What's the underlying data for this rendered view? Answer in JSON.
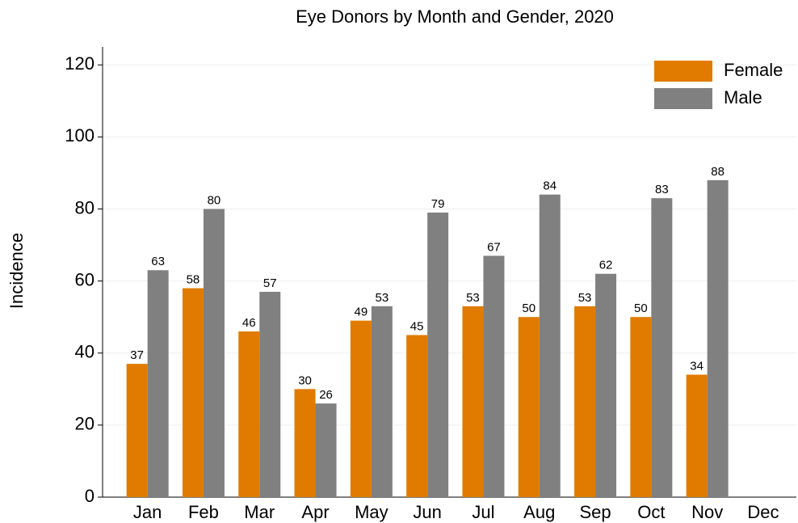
{
  "chart_data": {
    "type": "bar",
    "title": "Eye Donors by Month and Gender, 2020",
    "y_label": "Incidence",
    "categories": [
      "Jan",
      "Feb",
      "Mar",
      "Apr",
      "May",
      "Jun",
      "Jul",
      "Aug",
      "Sep",
      "Oct",
      "Nov",
      "Dec"
    ],
    "series": [
      {
        "name": "Female",
        "color": "#e07b00",
        "values": [
          37,
          58,
          46,
          30,
          49,
          45,
          53,
          50,
          53,
          50,
          34,
          null
        ]
      },
      {
        "name": "Male",
        "color": "#808080",
        "values": [
          63,
          80,
          57,
          26,
          53,
          79,
          67,
          84,
          62,
          83,
          88,
          null
        ]
      }
    ],
    "ylim": [
      0,
      125
    ],
    "yticks": [
      0,
      20,
      40,
      60,
      80,
      100,
      120
    ],
    "grid": true,
    "legend": "upper right"
  }
}
